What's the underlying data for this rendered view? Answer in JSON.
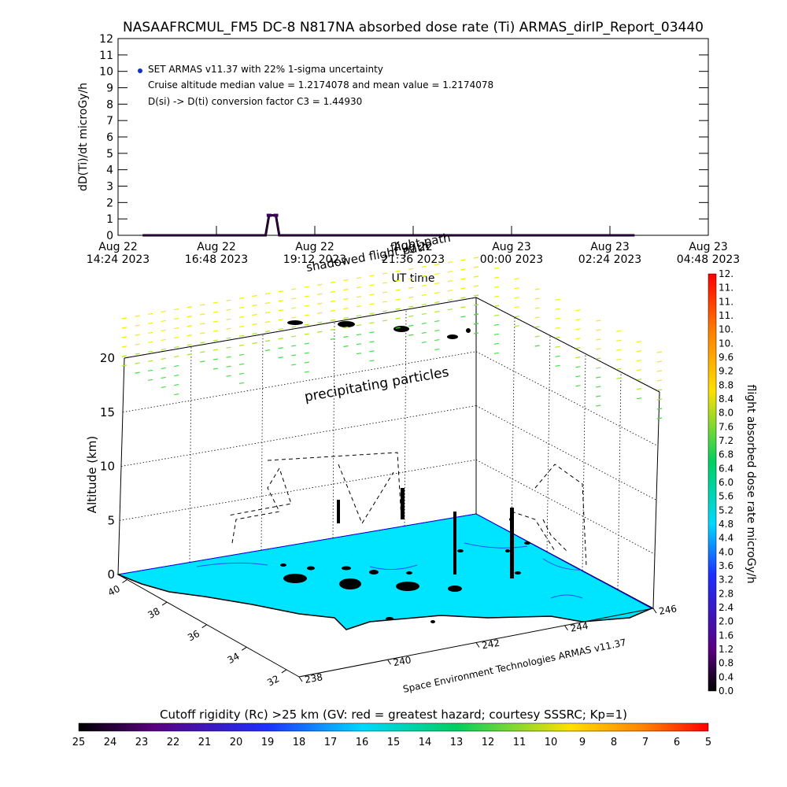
{
  "title": "NASAAFRCMUL_FM5 DC-8   N817NA absorbed dose rate (Ti) ARMAS_dirIP_Report_03440",
  "top_panel": {
    "ylabel": "dD(Ti)/dt microGy/h",
    "xlabel": "UT time",
    "annotations": [
      "SET ARMAS v11.37 with 22% 1-sigma uncertainty",
      "Cruise altitude median value = 1.2174078 and mean value = 1.2174078",
      "D(si) -> D(ti) conversion factor C3 = 1.44930"
    ],
    "legend_color": "#1030d0"
  },
  "chart_data": [
    {
      "type": "line",
      "title": "NASAAFRCMUL_FM5 DC-8   N817NA absorbed dose rate (Ti) ARMAS_dirIP_Report_03440",
      "xlabel": "UT time",
      "ylabel": "dD(Ti)/dt microGy/h",
      "ylim": [
        0,
        12
      ],
      "yticks": [
        "0",
        "1",
        "2",
        "3",
        "4",
        "5",
        "6",
        "7",
        "8",
        "9",
        "10",
        "11",
        "12"
      ],
      "xticks": [
        {
          "date": "Aug 22",
          "time": "14:24 2023"
        },
        {
          "date": "Aug 22",
          "time": "16:48 2023"
        },
        {
          "date": "Aug 22",
          "time": "19:12 2023"
        },
        {
          "date": "Aug 22",
          "time": "21:36 2023"
        },
        {
          "date": "Aug 23",
          "time": "00:00 2023"
        },
        {
          "date": "Aug 23",
          "time": "02:24 2023"
        },
        {
          "date": "Aug 23",
          "time": "04:48 2023"
        }
      ],
      "xlim": [
        "2023-08-22 14:24",
        "2023-08-23 04:48"
      ],
      "series": [
        {
          "x": [
            "2023-08-22 15:00",
            "2023-08-22 18:00",
            "2023-08-22 18:05",
            "2023-08-22 18:15",
            "2023-08-22 18:20",
            "2023-08-22 21:00",
            "2023-08-23 00:00",
            "2023-08-23 03:00"
          ],
          "values": [
            0,
            0,
            1.22,
            1.22,
            0,
            0,
            0,
            0
          ]
        }
      ]
    },
    {
      "type": "scatter",
      "xlabel": "Space Environment Technologies ARMAS v11.37",
      "ylabel": "Altitude (km)",
      "zlim": [
        0,
        20
      ],
      "zticks": [
        "0",
        "5",
        "10",
        "15",
        "20"
      ],
      "lat_ticks": [
        "40",
        "38",
        "36",
        "34",
        "32"
      ],
      "lon_ticks": [
        "238",
        "240",
        "242",
        "244",
        "246"
      ],
      "labels": [
        "flight path",
        "shadowed flight path",
        "precipitating particles"
      ],
      "colorbar": {
        "label": "flight absorbed dose rate microGy/h",
        "ticks": [
          "0.0",
          "0.4",
          "0.8",
          "1.2",
          "1.6",
          "2.0",
          "2.4",
          "2.8",
          "3.2",
          "3.6",
          "4.0",
          "4.4",
          "4.8",
          "5.2",
          "5.6",
          "6.0",
          "6.4",
          "6.8",
          "7.2",
          "7.6",
          "8.0",
          "8.4",
          "8.8",
          "9.2",
          "9.6",
          "10.",
          "10.",
          "11.",
          "11.",
          "11.",
          "12."
        ]
      }
    },
    {
      "type": "heatmap",
      "title": "Cutoff rigidity (Rc) >25 km (GV: red = greatest hazard; courtesy SSSRC; Kp=1)",
      "ticks": [
        "25",
        "24",
        "23",
        "22",
        "21",
        "20",
        "19",
        "18",
        "17",
        "16",
        "15",
        "14",
        "13",
        "12",
        "11",
        "10",
        "9",
        "8",
        "7",
        "6",
        "5"
      ]
    }
  ],
  "colors": {
    "map_fill": "#00e5ff",
    "particles_green": "#40e040",
    "particles_yellow": "#f0f000",
    "marker": "#400060"
  }
}
